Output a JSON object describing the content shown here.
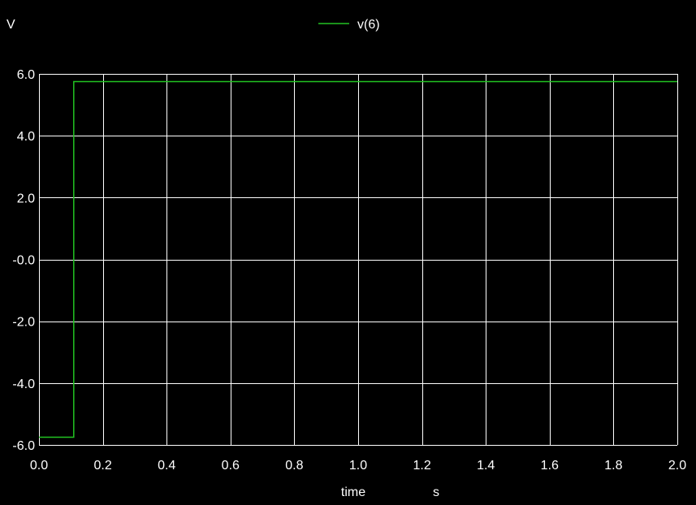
{
  "chart_data": {
    "type": "line",
    "ylabel": "V",
    "xlabel": "time",
    "xunit": "s",
    "xlim": [
      0.0,
      2.0
    ],
    "ylim": [
      -6.0,
      6.0
    ],
    "x_ticks": [
      0.0,
      0.2,
      0.4,
      0.6,
      0.8,
      1.0,
      1.2,
      1.4,
      1.6,
      1.8,
      2.0
    ],
    "x_tick_labels": [
      "0.0",
      "0.2",
      "0.4",
      "0.6",
      "0.8",
      "1.0",
      "1.2",
      "1.4",
      "1.6",
      "1.8",
      "2.0"
    ],
    "y_ticks": [
      6.0,
      4.0,
      2.0,
      0.0,
      -2.0,
      -4.0,
      -6.0
    ],
    "y_tick_labels": [
      "6.0",
      "4.0",
      "2.0",
      "-0.0",
      "-2.0",
      "-4.0",
      "-6.0"
    ],
    "grid": true,
    "legend_position": "top-center",
    "series": [
      {
        "name": "v(6)",
        "color": "#22c322",
        "x": [
          0.0,
          0.109,
          0.109,
          2.0
        ],
        "y": [
          -5.75,
          -5.75,
          5.75,
          5.75
        ]
      }
    ]
  },
  "colors": {
    "background": "#000000",
    "grid": "#ffffff",
    "text": "#ffffff"
  }
}
